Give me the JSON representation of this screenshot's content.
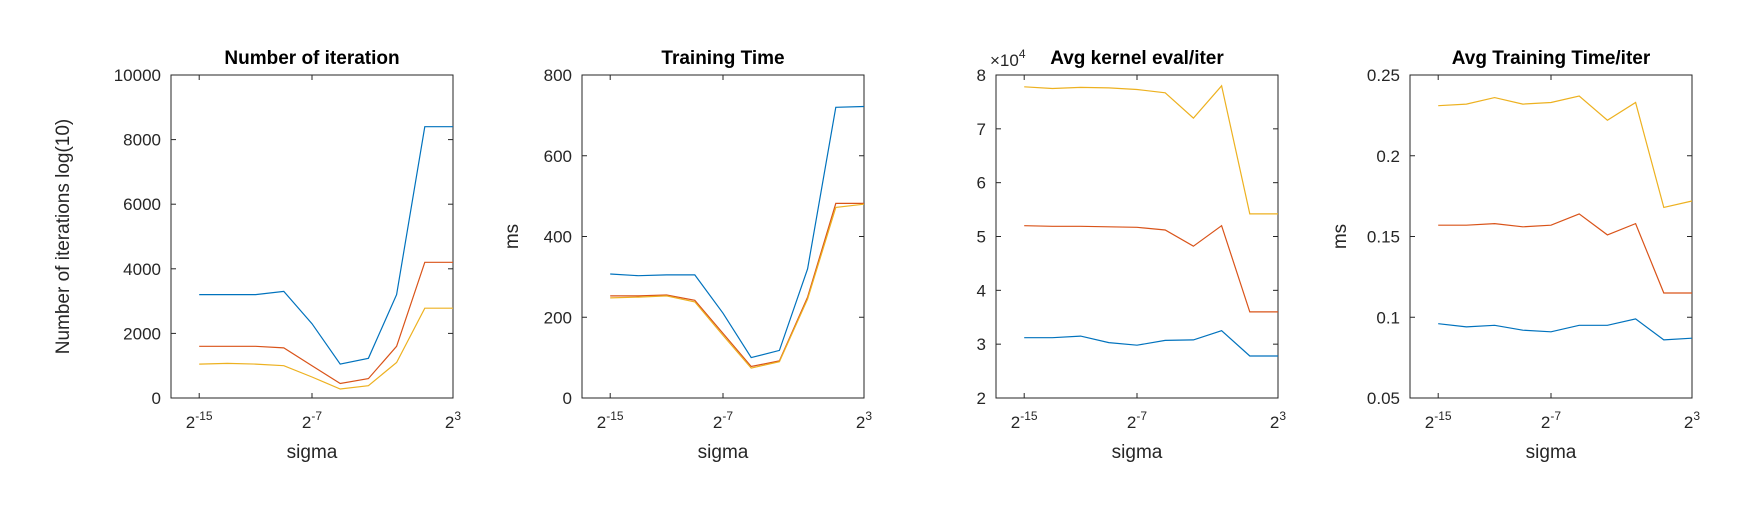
{
  "chart_data": [
    {
      "type": "line",
      "title": "Number of iteration",
      "xlabel": "sigma",
      "ylabel": "Number of iterations log(10)",
      "x": [
        -15,
        -13,
        -11,
        -9,
        -7,
        -5,
        -3,
        -1,
        1,
        3
      ],
      "xlim": [
        -17,
        3
      ],
      "xticks": [
        {
          "v": -15,
          "base": "2",
          "exp": "-15"
        },
        {
          "v": -7,
          "base": "2",
          "exp": "-7"
        },
        {
          "v": 3,
          "base": "2",
          "exp": "3"
        }
      ],
      "ylim": [
        0,
        10000
      ],
      "yticks": [
        {
          "v": 0,
          "label": "0"
        },
        {
          "v": 2000,
          "label": "2000"
        },
        {
          "v": 4000,
          "label": "4000"
        },
        {
          "v": 6000,
          "label": "6000"
        },
        {
          "v": 8000,
          "label": "8000"
        },
        {
          "v": 10000,
          "label": "10000"
        }
      ],
      "series": [
        {
          "color": "#0072BD",
          "values": [
            3200,
            3200,
            3200,
            3300,
            2300,
            1050,
            1230,
            3200,
            8400,
            8400
          ]
        },
        {
          "color": "#D95319",
          "values": [
            1600,
            1600,
            1600,
            1550,
            1000,
            450,
            600,
            1600,
            4200,
            4200
          ]
        },
        {
          "color": "#EDB120",
          "values": [
            1050,
            1070,
            1050,
            1000,
            650,
            280,
            380,
            1100,
            2780,
            2780
          ]
        }
      ]
    },
    {
      "type": "line",
      "title": "Training Time",
      "xlabel": "sigma",
      "ylabel": "ms",
      "x": [
        -15,
        -13,
        -11,
        -9,
        -7,
        -5,
        -3,
        -1,
        1,
        3
      ],
      "xlim": [
        -17,
        3
      ],
      "xticks": [
        {
          "v": -15,
          "base": "2",
          "exp": "-15"
        },
        {
          "v": -7,
          "base": "2",
          "exp": "-7"
        },
        {
          "v": 3,
          "base": "2",
          "exp": "3"
        }
      ],
      "ylim": [
        0,
        800
      ],
      "yticks": [
        {
          "v": 0,
          "label": "0"
        },
        {
          "v": 200,
          "label": "200"
        },
        {
          "v": 400,
          "label": "400"
        },
        {
          "v": 600,
          "label": "600"
        },
        {
          "v": 800,
          "label": "800"
        }
      ],
      "series": [
        {
          "color": "#0072BD",
          "values": [
            307,
            303,
            305,
            305,
            210,
            100,
            118,
            320,
            720,
            722
          ]
        },
        {
          "color": "#D95319",
          "values": [
            253,
            253,
            255,
            242,
            160,
            78,
            92,
            250,
            482,
            482
          ]
        },
        {
          "color": "#EDB120",
          "values": [
            248,
            250,
            253,
            238,
            155,
            74,
            90,
            245,
            472,
            480
          ]
        }
      ]
    },
    {
      "type": "line",
      "title": "Avg kernel eval/iter",
      "xlabel": "sigma",
      "ylabel": "",
      "multiplier": {
        "base": "×10",
        "exp": "4"
      },
      "x": [
        -15,
        -13,
        -11,
        -9,
        -7,
        -5,
        -3,
        -1,
        1,
        3
      ],
      "xlim": [
        -17,
        3
      ],
      "xticks": [
        {
          "v": -15,
          "base": "2",
          "exp": "-15"
        },
        {
          "v": -7,
          "base": "2",
          "exp": "-7"
        },
        {
          "v": 3,
          "base": "2",
          "exp": "3"
        }
      ],
      "ylim": [
        2,
        8
      ],
      "yticks": [
        {
          "v": 2,
          "label": "2"
        },
        {
          "v": 3,
          "label": "3"
        },
        {
          "v": 4,
          "label": "4"
        },
        {
          "v": 5,
          "label": "5"
        },
        {
          "v": 6,
          "label": "6"
        },
        {
          "v": 7,
          "label": "7"
        },
        {
          "v": 8,
          "label": "8"
        }
      ],
      "series": [
        {
          "color": "#0072BD",
          "values": [
            3.12,
            3.12,
            3.15,
            3.03,
            2.98,
            3.07,
            3.08,
            3.25,
            2.78,
            2.78
          ]
        },
        {
          "color": "#D95319",
          "values": [
            5.2,
            5.19,
            5.19,
            5.18,
            5.17,
            5.12,
            4.82,
            5.2,
            3.6,
            3.6
          ]
        },
        {
          "color": "#EDB120",
          "values": [
            7.78,
            7.75,
            7.77,
            7.76,
            7.73,
            7.67,
            7.2,
            7.8,
            5.42,
            5.42
          ]
        }
      ]
    },
    {
      "type": "line",
      "title": "Avg Training Time/iter",
      "xlabel": "sigma",
      "ylabel": "ms",
      "x": [
        -15,
        -13,
        -11,
        -9,
        -7,
        -5,
        -3,
        -1,
        1,
        3
      ],
      "xlim": [
        -17,
        3
      ],
      "xticks": [
        {
          "v": -15,
          "base": "2",
          "exp": "-15"
        },
        {
          "v": -7,
          "base": "2",
          "exp": "-7"
        },
        {
          "v": 3,
          "base": "2",
          "exp": "3"
        }
      ],
      "ylim": [
        0.05,
        0.25
      ],
      "yticks": [
        {
          "v": 0.05,
          "label": "0.05"
        },
        {
          "v": 0.1,
          "label": "0.1"
        },
        {
          "v": 0.15,
          "label": "0.15"
        },
        {
          "v": 0.2,
          "label": "0.2"
        },
        {
          "v": 0.25,
          "label": "0.25"
        }
      ],
      "series": [
        {
          "color": "#0072BD",
          "values": [
            0.096,
            0.094,
            0.095,
            0.092,
            0.091,
            0.095,
            0.095,
            0.099,
            0.086,
            0.087
          ]
        },
        {
          "color": "#D95319",
          "values": [
            0.157,
            0.157,
            0.158,
            0.156,
            0.157,
            0.164,
            0.151,
            0.158,
            0.115,
            0.115
          ]
        },
        {
          "color": "#EDB120",
          "values": [
            0.231,
            0.232,
            0.236,
            0.232,
            0.233,
            0.237,
            0.222,
            0.233,
            0.168,
            0.172
          ]
        }
      ]
    }
  ]
}
